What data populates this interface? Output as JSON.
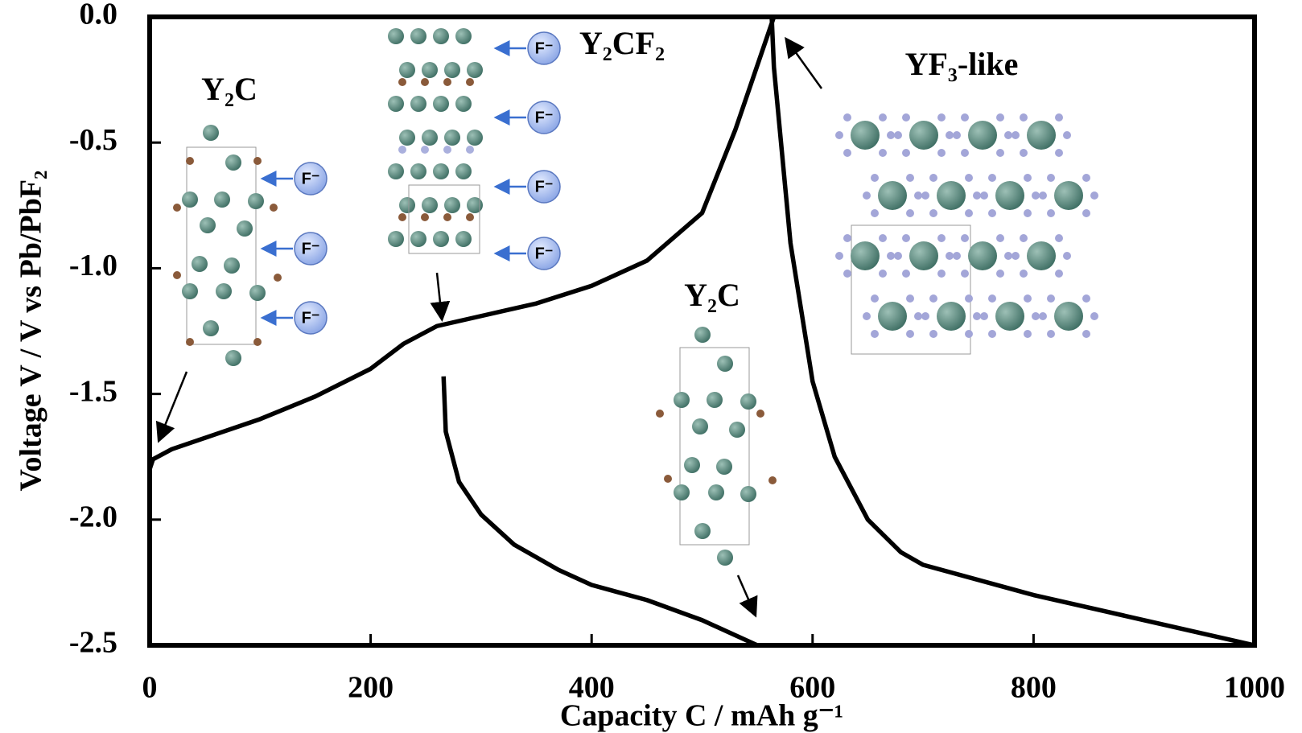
{
  "chart_data": {
    "type": "line",
    "xlabel": "Capacity C / mAh g⁻¹",
    "ylabel": "Voltage V / V vs Pb/PbF₂",
    "xlim": [
      0,
      1000
    ],
    "ylim": [
      -2.5,
      0
    ],
    "xticks": [
      0,
      200,
      400,
      600,
      800,
      1000
    ],
    "yticks": [
      {
        "value": 0,
        "label": "0.0"
      },
      -0.5,
      {
        "value": -1,
        "label": "-1.0"
      },
      -1.5,
      {
        "value": -2,
        "label": "-2.0"
      },
      -2.5
    ],
    "color": "#000000",
    "series": [
      {
        "color": "#000000",
        "x": [
          0,
          3,
          20,
          60,
          100,
          150,
          200,
          230,
          260,
          300,
          350,
          400,
          450,
          500,
          530,
          565
        ],
        "values": [
          -1.8,
          -1.76,
          -1.72,
          -1.66,
          -1.6,
          -1.51,
          -1.4,
          -1.3,
          -1.23,
          -1.19,
          -1.14,
          -1.07,
          -0.97,
          -0.78,
          -0.45,
          0
        ]
      },
      {
        "color": "#000000",
        "x": [
          266,
          268,
          280,
          300,
          330,
          370,
          400,
          450,
          500,
          550
        ],
        "values": [
          -1.43,
          -1.65,
          -1.85,
          -1.98,
          -2.1,
          -2.2,
          -2.26,
          -2.32,
          -2.4,
          -2.5
        ]
      },
      {
        "color": "#000000",
        "x": [
          563,
          565,
          580,
          600,
          620,
          650,
          680,
          700,
          800,
          900,
          1000
        ],
        "values": [
          0,
          -0.2,
          -0.9,
          -1.45,
          -1.75,
          -2.0,
          -2.13,
          -2.18,
          -2.3,
          -2.4,
          -2.5
        ]
      }
    ],
    "annotations": [
      "Y₂C",
      "Y₂CF₂",
      "YF₃-like",
      "Y₂C"
    ],
    "ion_labels": [
      "F⁻",
      "F⁻",
      "F⁻",
      "F⁻",
      "F⁻",
      "F⁻",
      "F⁻"
    ]
  }
}
